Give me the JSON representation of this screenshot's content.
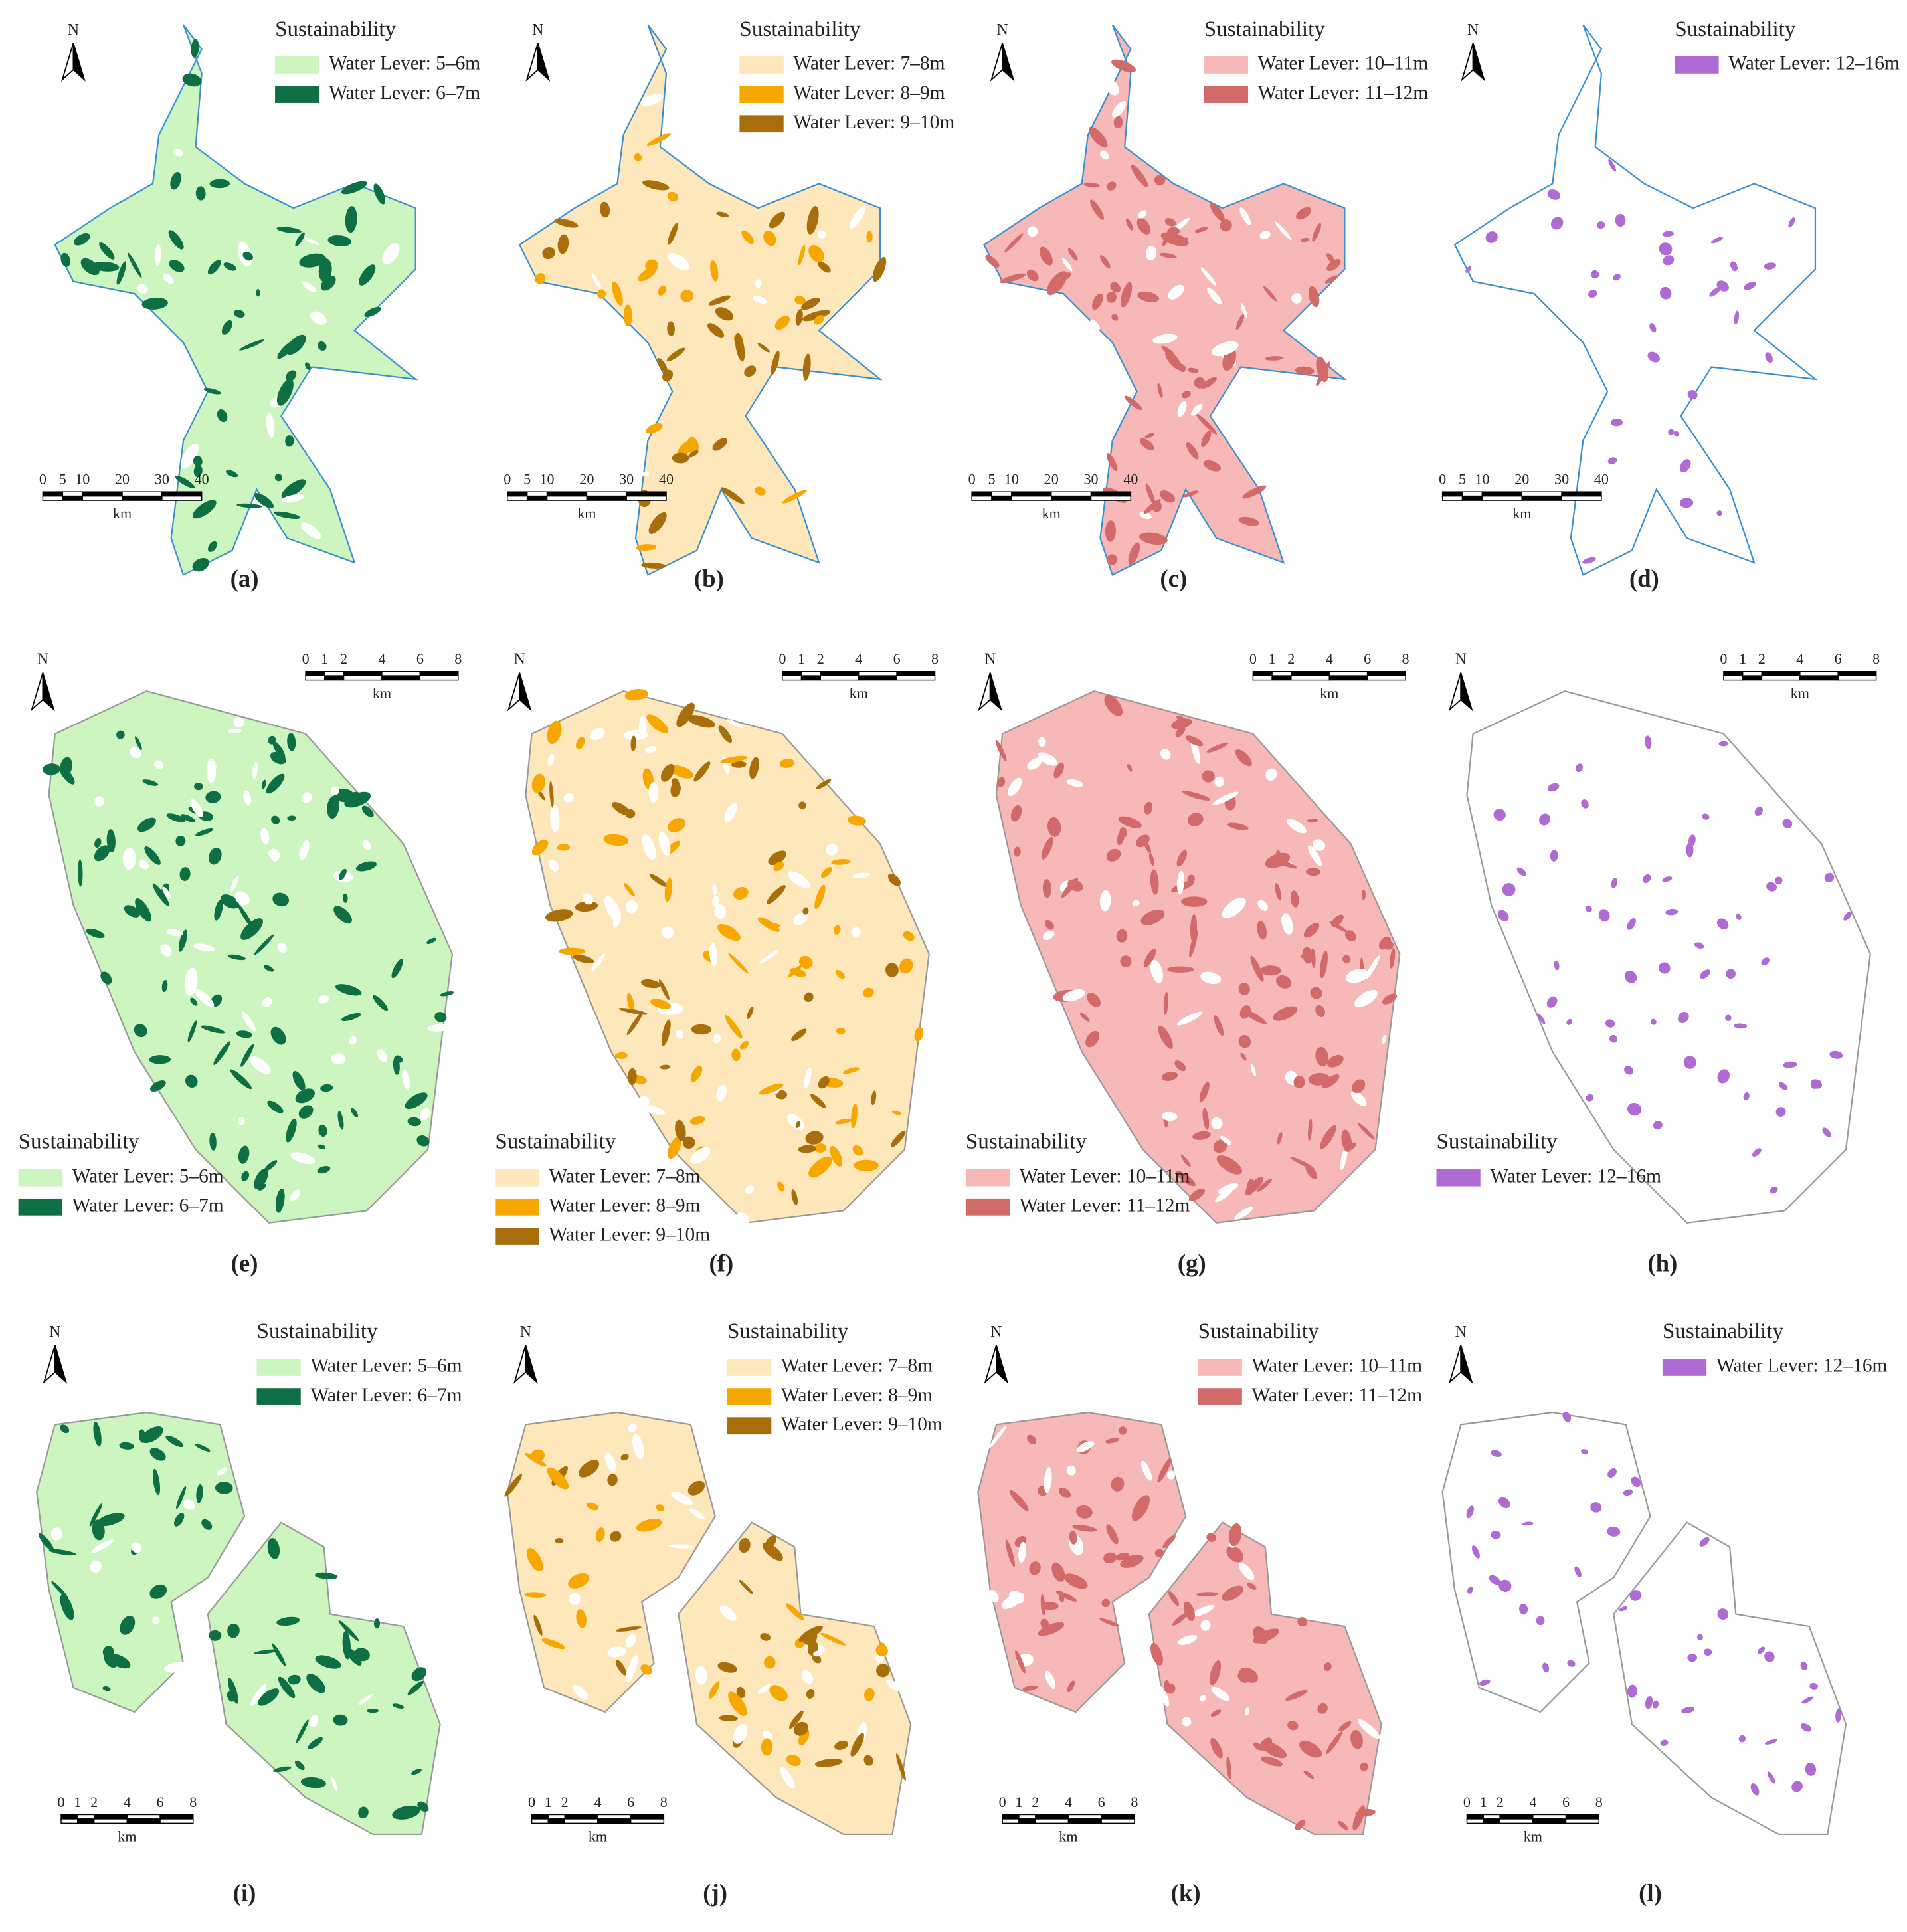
{
  "panels": [
    {
      "label": "(a)",
      "north": "N",
      "legend": {
        "title": "Sustainability",
        "items": [
          {
            "label": "Water Lever: 5–6m",
            "color": "#ccf5c0"
          },
          {
            "label": "Water Lever: 6–7m",
            "color": "#0e6e44"
          }
        ]
      },
      "scale_bar": {
        "ticks": [
          0,
          5,
          10,
          20,
          30,
          40
        ],
        "unit": "km"
      }
    },
    {
      "label": "(b)",
      "north": "N",
      "legend": {
        "title": "Sustainability",
        "items": [
          {
            "label": "Water Lever: 7–8m",
            "color": "#fde7bb"
          },
          {
            "label": "Water Lever: 8–9m",
            "color": "#f7a800"
          },
          {
            "label": "Water Lever: 9–10m",
            "color": "#a86e0c"
          }
        ]
      },
      "scale_bar": {
        "ticks": [
          0,
          5,
          10,
          20,
          30,
          40
        ],
        "unit": "km"
      }
    },
    {
      "label": "(c)",
      "north": "N",
      "legend": {
        "title": "Sustainability",
        "items": [
          {
            "label": "Water Lever: 10–11m",
            "color": "#f7b8b8"
          },
          {
            "label": "Water Lever: 11–12m",
            "color": "#d26a6a"
          }
        ]
      },
      "scale_bar": {
        "ticks": [
          0,
          5,
          10,
          20,
          30,
          40
        ],
        "unit": "km"
      }
    },
    {
      "label": "(d)",
      "north": "N",
      "legend": {
        "title": "Sustainability",
        "items": [
          {
            "label": "Water Lever: 12–16m",
            "color": "#b06ad4"
          }
        ]
      },
      "scale_bar": {
        "ticks": [
          0,
          5,
          10,
          20,
          30,
          40
        ],
        "unit": "km"
      }
    },
    {
      "label": "(e)",
      "north": "N",
      "legend": {
        "title": "Sustainability",
        "items": [
          {
            "label": "Water Lever: 5–6m",
            "color": "#ccf5c0"
          },
          {
            "label": "Water Lever: 6–7m",
            "color": "#0e6e44"
          }
        ]
      },
      "scale_bar": {
        "ticks": [
          0,
          1,
          2,
          4,
          6,
          8
        ],
        "unit": "km"
      }
    },
    {
      "label": "(f)",
      "north": "N",
      "legend": {
        "title": "Sustainability",
        "items": [
          {
            "label": "Water Lever: 7–8m",
            "color": "#fde7bb"
          },
          {
            "label": "Water Lever: 8–9m",
            "color": "#f7a800"
          },
          {
            "label": "Water Lever: 9–10m",
            "color": "#a86e0c"
          }
        ]
      },
      "scale_bar": {
        "ticks": [
          0,
          1,
          2,
          4,
          6,
          8
        ],
        "unit": "km"
      }
    },
    {
      "label": "(g)",
      "north": "N",
      "legend": {
        "title": "Sustainability",
        "items": [
          {
            "label": "Water Lever: 10–11m",
            "color": "#f7b8b8"
          },
          {
            "label": "Water Lever: 11–12m",
            "color": "#d26a6a"
          }
        ]
      },
      "scale_bar": {
        "ticks": [
          0,
          1,
          2,
          4,
          6,
          8
        ],
        "unit": "km"
      }
    },
    {
      "label": "(h)",
      "north": "N",
      "legend": {
        "title": "Sustainability",
        "items": [
          {
            "label": "Water Lever: 12–16m",
            "color": "#b06ad4"
          }
        ]
      },
      "scale_bar": {
        "ticks": [
          0,
          1,
          2,
          4,
          6,
          8
        ],
        "unit": "km"
      }
    },
    {
      "label": "(i)",
      "north": "N",
      "legend": {
        "title": "Sustainability",
        "items": [
          {
            "label": "Water Lever: 5–6m",
            "color": "#ccf5c0"
          },
          {
            "label": "Water Lever: 6–7m",
            "color": "#0e6e44"
          }
        ]
      },
      "scale_bar": {
        "ticks": [
          0,
          1,
          2,
          4,
          6,
          8
        ],
        "unit": "km"
      }
    },
    {
      "label": "(j)",
      "north": "N",
      "legend": {
        "title": "Sustainability",
        "items": [
          {
            "label": "Water Lever: 7–8m",
            "color": "#fde7bb"
          },
          {
            "label": "Water Lever: 8–9m",
            "color": "#f7a800"
          },
          {
            "label": "Water Lever: 9–10m",
            "color": "#a86e0c"
          }
        ]
      },
      "scale_bar": {
        "ticks": [
          0,
          1,
          2,
          4,
          6,
          8
        ],
        "unit": "km"
      }
    },
    {
      "label": "(k)",
      "north": "N",
      "legend": {
        "title": "Sustainability",
        "items": [
          {
            "label": "Water Lever: 10–11m",
            "color": "#f7b8b8"
          },
          {
            "label": "Water Lever: 11–12m",
            "color": "#d26a6a"
          }
        ]
      },
      "scale_bar": {
        "ticks": [
          0,
          1,
          2,
          4,
          6,
          8
        ],
        "unit": "km"
      }
    },
    {
      "label": "(l)",
      "north": "N",
      "legend": {
        "title": "Sustainability",
        "items": [
          {
            "label": "Water Lever: 12–16m",
            "color": "#b06ad4"
          }
        ]
      },
      "scale_bar": {
        "ticks": [
          0,
          1,
          2,
          4,
          6,
          8
        ],
        "unit": "km"
      }
    }
  ]
}
